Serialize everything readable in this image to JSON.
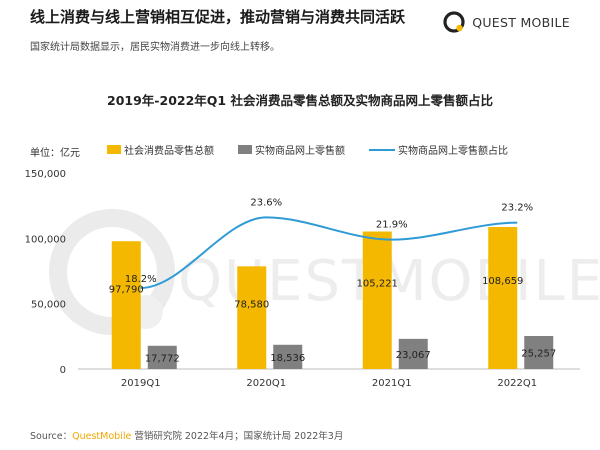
{
  "header": {
    "headline": "线上消费与线上营销相互促进，推动营销与消费共同活跃",
    "subhead": "国家统计局数据显示，居民实物消费进一步向线上转移。",
    "brand_name": "QUEST MOBILE"
  },
  "watermark": "QUESTMOBILE",
  "chart_data": {
    "type": "bar",
    "title": "2019年-2022年Q1 社会消费品零售总额及实物商品网上零售额占比",
    "unit_label": "单位：亿元",
    "categories": [
      "2019Q1",
      "2020Q1",
      "2021Q1",
      "2022Q1"
    ],
    "series": [
      {
        "name": "社会消费品零售总额",
        "type": "bar",
        "color": "#f5b800",
        "values": [
          97790,
          78580,
          105221,
          108659
        ],
        "value_labels": [
          "97,790",
          "78,580",
          "105,221",
          "108,659"
        ]
      },
      {
        "name": "实物商品网上零售额",
        "type": "bar",
        "color": "#808080",
        "values": [
          17772,
          18536,
          23067,
          25257
        ],
        "value_labels": [
          "17,772",
          "18,536",
          "23,067",
          "25,257"
        ]
      },
      {
        "name": "实物商品网上零售额占比",
        "type": "line",
        "color": "#2e9bd6",
        "values": [
          18.2,
          23.6,
          21.9,
          23.2
        ],
        "value_labels": [
          "18.2%",
          "23.6%",
          "21.9%",
          "23.2%"
        ]
      }
    ],
    "yticks": [
      0,
      50000,
      100000,
      150000
    ],
    "ytick_labels": [
      "0",
      "50,000",
      "100,000",
      "150,000"
    ],
    "ylim": [
      0,
      150000
    ],
    "grid": false,
    "legend_position": "top"
  },
  "source": {
    "prefix": "Source：",
    "brand": "QuestMobile",
    "rest": " 营销研究院 2022年4月；国家统计局 2022年3月"
  }
}
